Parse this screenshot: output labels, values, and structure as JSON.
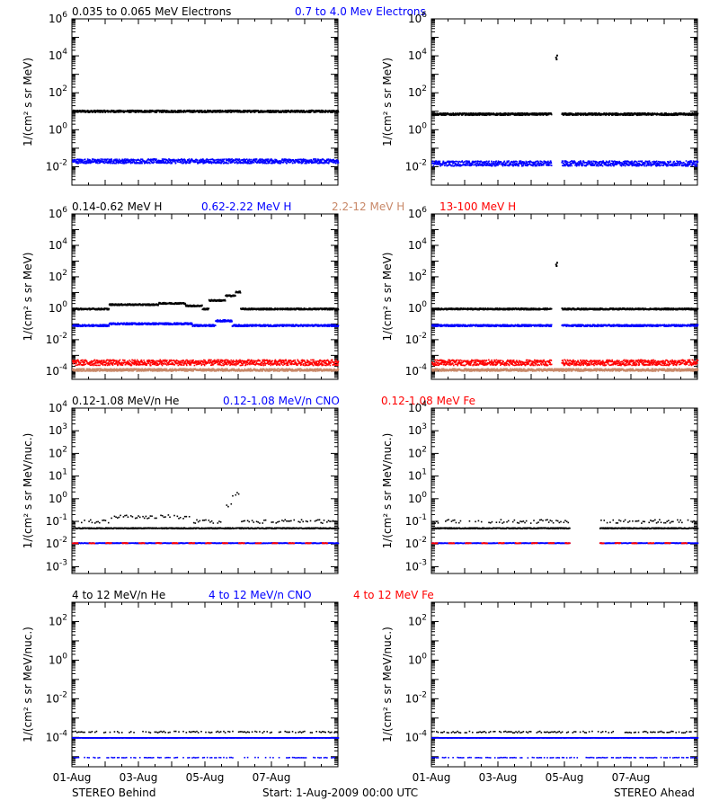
{
  "footer": {
    "left": "STEREO Behind",
    "center": "Start:  1-Aug-2009 00:00 UTC",
    "right": "STEREO Ahead"
  },
  "x_tick_labels": [
    "01-Aug",
    "03-Aug",
    "05-Aug",
    "07-Aug"
  ],
  "colors": {
    "black": "#000000",
    "blue": "#0000ff",
    "salmon": "#c88868",
    "red": "#ff0000"
  },
  "chart_data": [
    {
      "type": "scatter",
      "panel": "Electrons",
      "y_scale": "log",
      "ylabel": "1/(cm² s sr MeV)",
      "ylim": [
        0.001,
        1000000
      ],
      "y_ticks": [
        {
          "base": "10",
          "exp": "6",
          "v": 1000000
        },
        {
          "base": "10",
          "exp": "4",
          "v": 10000
        },
        {
          "base": "10",
          "exp": "2",
          "v": 100
        },
        {
          "base": "10",
          "exp": "0",
          "v": 1
        },
        {
          "base": "10",
          "exp": "-2",
          "v": 0.01
        }
      ],
      "series": [
        {
          "name": "0.035 to 0.065 MeV Electrons",
          "color": "#000000"
        },
        {
          "name": "0.7 to 4.0 Mev Electrons",
          "color": "#0000ff"
        }
      ],
      "behind": [
        {
          "color": "#000000",
          "level": 10,
          "spread": 0.06,
          "bumps": []
        },
        {
          "color": "#0000ff",
          "level": 0.02,
          "spread": 0.12,
          "bumps": []
        }
      ],
      "ahead": [
        {
          "color": "#000000",
          "level": 7,
          "spread": 0.06,
          "bumps": [],
          "gap": [
            3.6,
            3.9
          ],
          "spike": {
            "x": 3.75,
            "y": 8000
          }
        },
        {
          "color": "#0000ff",
          "level": 0.015,
          "spread": 0.14,
          "bumps": [],
          "gap": [
            3.6,
            3.9
          ]
        }
      ]
    },
    {
      "type": "scatter",
      "panel": "Protons",
      "y_scale": "log",
      "ylabel": "1/(cm² s sr MeV)",
      "ylim": [
        3e-05,
        1000000
      ],
      "y_ticks": [
        {
          "base": "10",
          "exp": "6",
          "v": 1000000
        },
        {
          "base": "10",
          "exp": "4",
          "v": 10000
        },
        {
          "base": "10",
          "exp": "2",
          "v": 100
        },
        {
          "base": "10",
          "exp": "0",
          "v": 1
        },
        {
          "base": "10",
          "exp": "-2",
          "v": 0.01
        },
        {
          "base": "10",
          "exp": "-4",
          "v": 0.0001
        }
      ],
      "series": [
        {
          "name": "0.14-0.62 MeV H",
          "color": "#000000"
        },
        {
          "name": "0.62-2.22 MeV H",
          "color": "#0000ff"
        },
        {
          "name": "2.2-12 MeV H",
          "color": "#c88868"
        },
        {
          "name": "13-100 MeV H",
          "color": "#ff0000"
        }
      ],
      "behind": [
        {
          "color": "#000000",
          "level": 0.9,
          "spread": 0.05,
          "bumps": [
            [
              1.1,
              2.6,
              1.9
            ],
            [
              2.6,
              3.4,
              2.3
            ],
            [
              3.4,
              3.9,
              1.6
            ],
            [
              4.1,
              4.6,
              3.5
            ],
            [
              4.6,
              4.9,
              7
            ],
            [
              4.9,
              5.05,
              12
            ]
          ]
        },
        {
          "color": "#0000ff",
          "level": 0.08,
          "spread": 0.06,
          "bumps": [
            [
              1.1,
              3.6,
              1.3
            ],
            [
              4.3,
              4.8,
              2
            ]
          ]
        },
        {
          "color": "#c88868",
          "level": 0.00012,
          "spread": 0.08,
          "bumps": []
        },
        {
          "color": "#ff0000",
          "level": 0.00035,
          "spread": 0.18,
          "bumps": []
        }
      ],
      "ahead": [
        {
          "color": "#000000",
          "level": 0.9,
          "spread": 0.05,
          "bumps": [],
          "gap": [
            3.6,
            3.9
          ],
          "spike": {
            "x": 3.75,
            "y": 600
          }
        },
        {
          "color": "#0000ff",
          "level": 0.08,
          "spread": 0.06,
          "bumps": [],
          "gap": [
            3.6,
            3.9
          ]
        },
        {
          "color": "#c88868",
          "level": 0.00012,
          "spread": 0.08,
          "bumps": []
        },
        {
          "color": "#ff0000",
          "level": 0.00035,
          "spread": 0.18,
          "bumps": [],
          "gap": [
            3.6,
            3.9
          ]
        }
      ]
    },
    {
      "type": "scatter",
      "panel": "Heavy ions low energy",
      "y_scale": "log",
      "ylabel": "1/(cm² s sr MeV/nuc.)",
      "ylim": [
        0.0005,
        10000
      ],
      "y_ticks": [
        {
          "base": "10",
          "exp": "4",
          "v": 10000
        },
        {
          "base": "10",
          "exp": "3",
          "v": 1000
        },
        {
          "base": "10",
          "exp": "2",
          "v": 100
        },
        {
          "base": "10",
          "exp": "1",
          "v": 10
        },
        {
          "base": "10",
          "exp": "0",
          "v": 1
        },
        {
          "base": "10",
          "exp": "-1",
          "v": 0.1
        },
        {
          "base": "10",
          "exp": "-2",
          "v": 0.01
        },
        {
          "base": "10",
          "exp": "-3",
          "v": 0.001
        }
      ],
      "series": [
        {
          "name": "0.12-1.08 MeV/n He",
          "color": "#000000"
        },
        {
          "name": "0.12-1.08 MeV/n CNO",
          "color": "#0000ff"
        },
        {
          "name": "0.12-1.08 MeV Fe",
          "color": "#ff0000"
        }
      ],
      "behind": [
        {
          "color": "#000000",
          "level": 0.05,
          "spread": 0.02,
          "bumps": [],
          "dense": true
        },
        {
          "color": "#000000",
          "level": 0.1,
          "spread": 0.08,
          "bumps": [
            [
              1.1,
              3.6,
              1.6
            ],
            [
              4.5,
              4.8,
              5
            ],
            [
              4.8,
              5.0,
              16
            ]
          ],
          "sparse": true
        },
        {
          "color": "#0000ff",
          "level": 0.011,
          "spread": 0.01,
          "bumps": [],
          "dense": true
        },
        {
          "color": "#ff0000",
          "level": 0.011,
          "spread": 0.01,
          "bumps": [],
          "dense": true,
          "dashed": true
        }
      ],
      "ahead": [
        {
          "color": "#000000",
          "level": 0.05,
          "spread": 0.02,
          "bumps": [],
          "dense": true,
          "gap": [
            4.15,
            5.05
          ]
        },
        {
          "color": "#000000",
          "level": 0.1,
          "spread": 0.08,
          "bumps": [],
          "sparse": true,
          "gap": [
            4.15,
            5.05
          ]
        },
        {
          "color": "#0000ff",
          "level": 0.011,
          "spread": 0.01,
          "bumps": [],
          "dense": true,
          "gap": [
            4.15,
            5.05
          ]
        },
        {
          "color": "#ff0000",
          "level": 0.011,
          "spread": 0.01,
          "bumps": [],
          "dense": true,
          "dashed": true,
          "gap": [
            4.15,
            5.05
          ]
        }
      ]
    },
    {
      "type": "scatter",
      "panel": "Heavy ions high energy",
      "y_scale": "log",
      "ylabel": "1/(cm² s sr MeV/nuc.)",
      "ylim": [
        3e-06,
        1000
      ],
      "y_ticks": [
        {
          "base": "10",
          "exp": "2",
          "v": 100
        },
        {
          "base": "10",
          "exp": "0",
          "v": 1
        },
        {
          "base": "10",
          "exp": "-2",
          "v": 0.01
        },
        {
          "base": "10",
          "exp": "-4",
          "v": 0.0001
        }
      ],
      "series": [
        {
          "name": "4 to 12 MeV/n He",
          "color": "#000000"
        },
        {
          "name": "4 to 12 MeV/n CNO",
          "color": "#0000ff"
        },
        {
          "name": "4 to 12 MeV Fe",
          "color": "#ff0000"
        }
      ],
      "behind": [
        {
          "color": "#000000",
          "level": 0.00019,
          "spread": 0.04,
          "bumps": [],
          "sparse": true
        },
        {
          "color": "#0000ff",
          "level": 9.5e-05,
          "spread": 0.005,
          "bumps": [],
          "dense": true
        },
        {
          "color": "#0000ff",
          "level": 9e-06,
          "spread": 0.01,
          "bumps": [],
          "sparse": true
        }
      ],
      "ahead": [
        {
          "color": "#000000",
          "level": 0.00019,
          "spread": 0.04,
          "bumps": [],
          "sparse": true
        },
        {
          "color": "#0000ff",
          "level": 9.5e-05,
          "spread": 0.005,
          "bumps": [],
          "dense": true
        },
        {
          "color": "#0000ff",
          "level": 9e-06,
          "spread": 0.01,
          "bumps": [],
          "sparse": true
        }
      ]
    }
  ]
}
